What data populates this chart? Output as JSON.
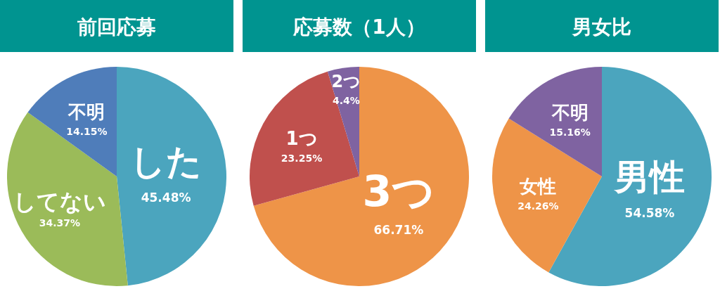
{
  "chart_data": [
    {
      "type": "pie",
      "title": "前回応募",
      "categories": [
        "した",
        "してない",
        "不明"
      ],
      "values": [
        45.48,
        34.37,
        14.15
      ],
      "value_labels": [
        "45.48%",
        "34.37%",
        "14.15%"
      ],
      "colors": [
        "#4ba5be",
        "#9bbb59",
        "#4f7dba"
      ]
    },
    {
      "type": "pie",
      "title": "応募数（1人）",
      "categories": [
        "3つ",
        "1つ",
        "2つ"
      ],
      "values": [
        66.71,
        23.25,
        4.4
      ],
      "value_labels": [
        "66.71%",
        "23.25%",
        "4.4%"
      ],
      "colors": [
        "#ee9448",
        "#c0504d",
        "#7f63a1"
      ]
    },
    {
      "type": "pie",
      "title": "男女比",
      "categories": [
        "男性",
        "女性",
        "不明"
      ],
      "values": [
        54.58,
        24.26,
        15.16
      ],
      "value_labels": [
        "54.58%",
        "24.26%",
        "15.16%"
      ],
      "colors": [
        "#4ba5be",
        "#ee9448",
        "#7f63a1"
      ]
    }
  ]
}
